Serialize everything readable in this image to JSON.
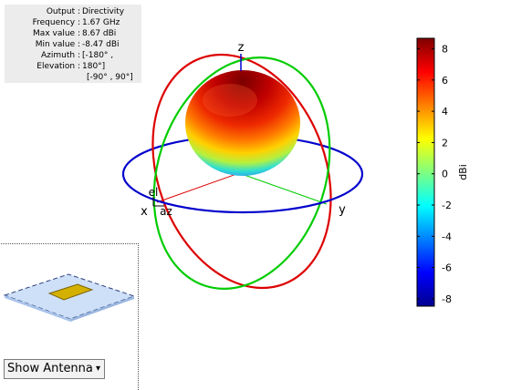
{
  "info": {
    "output_label": "Output :",
    "output_value": "Directivity",
    "frequency_label": "Frequency :",
    "frequency_value": "1.67 GHz",
    "max_label": "Max value :",
    "max_value": "8.67 dBi",
    "min_label": "Min value :",
    "min_value": "-8.47 dBi",
    "azimuth_label": "Azimuth :",
    "azimuth_value": "[-180° ,",
    "elevation_label": "Elevation :",
    "elevation_value": "180°]",
    "elevation_range": "[-90° , 90°]"
  },
  "axes": {
    "x_label": "x",
    "y_label": "y",
    "z_label": "z",
    "el_label": "el",
    "az_label": "az"
  },
  "colorbar": {
    "unit": "dBi",
    "ticks": [
      "8",
      "6",
      "4",
      "2",
      "0",
      "-2",
      "-4",
      "-6",
      "-8"
    ],
    "min": -8.47,
    "max": 8.67
  },
  "colors": {
    "x_circle": "#dd0000",
    "y_circle": "#00cc00",
    "z_circle": "#0000cc",
    "panel_bg": "#ececec"
  },
  "dropdown": {
    "selected": "Show Antenna",
    "arrow": "▾"
  }
}
